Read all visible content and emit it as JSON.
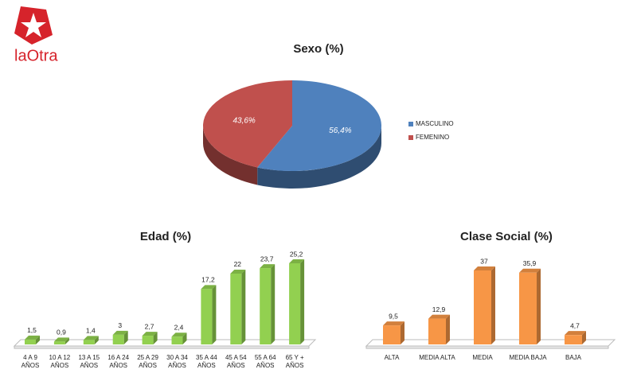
{
  "logo": {
    "text": "laOtra"
  },
  "chart_data": [
    {
      "type": "pie",
      "title": "Sexo (%)",
      "categories": [
        "MASCULINO",
        "FEMENINO"
      ],
      "values": [
        56.4,
        43.6
      ],
      "value_labels": [
        "56,4%",
        "43,6%"
      ],
      "colors": [
        "#4f81bd",
        "#c0504d"
      ],
      "legend": "right"
    },
    {
      "type": "bar",
      "title": "Edad (%)",
      "categories": [
        "4 A 9 AÑOS",
        "10 A 12 AÑOS",
        "13 A 15 AÑOS",
        "16 A 24 AÑOS",
        "25 A 29 AÑOS",
        "30 A 34 AÑOS",
        "35 A 44 AÑOS",
        "45 A 54 AÑOS",
        "55 A 64 AÑOS",
        "65 Y + AÑOS"
      ],
      "values": [
        1.5,
        0.9,
        1.4,
        3,
        2.7,
        2.4,
        17.2,
        22,
        23.7,
        25.2
      ],
      "value_labels": [
        "1,5",
        "0,9",
        "1,4",
        "3",
        "2,7",
        "2,4",
        "17,2",
        "22",
        "23,7",
        "25,2"
      ],
      "color": "#92d050"
    },
    {
      "type": "bar",
      "title": "Clase Social (%)",
      "categories": [
        "ALTA",
        "MEDIA ALTA",
        "MEDIA",
        "MEDIA BAJA",
        "BAJA"
      ],
      "values": [
        9.5,
        12.9,
        37,
        35.9,
        4.7
      ],
      "value_labels": [
        "9,5",
        "12,9",
        "37",
        "35,9",
        "4,7"
      ],
      "color": "#f79646"
    }
  ]
}
